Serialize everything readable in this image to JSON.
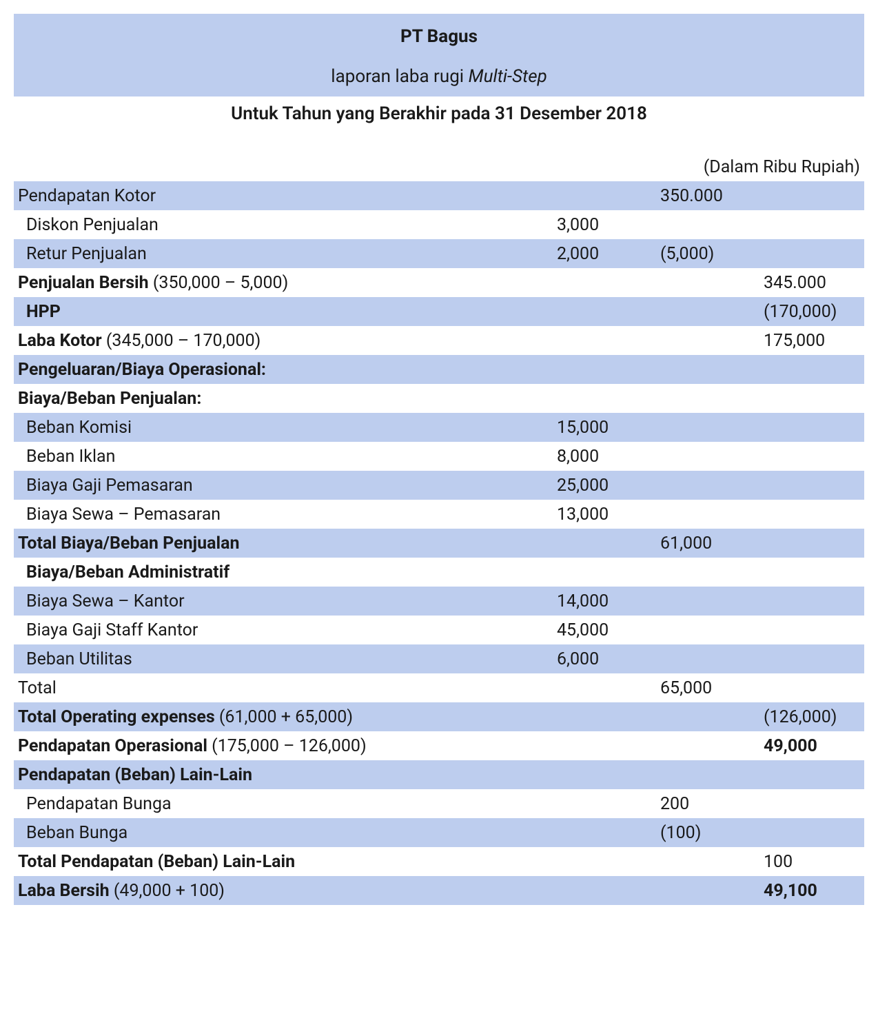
{
  "header": {
    "company": "PT Bagus",
    "report_type_prefix": "laporan laba rugi ",
    "report_type_italic": "Multi-Step",
    "period": "Untuk Tahun yang Berakhir pada 31 Desember 2018",
    "unit_note": "(Dalam Ribu Rupiah)"
  },
  "styling": {
    "row_blue": "#bdcdee",
    "row_white": "#ffffff",
    "text_color": "#1a1a1a",
    "font_size_body": 25,
    "font_size_header": 26
  },
  "rows": [
    {
      "bg": "blue",
      "label": "Pendapatan Kotor",
      "indent": 0,
      "bold": false,
      "c2": "",
      "c3": "350.000",
      "c4": ""
    },
    {
      "bg": "white",
      "label": "Diskon Penjualan",
      "indent": 1,
      "bold": false,
      "c2": "3,000",
      "c3": "",
      "c4": ""
    },
    {
      "bg": "blue",
      "label": "Retur Penjualan",
      "indent": 1,
      "bold": false,
      "c2": "2,000",
      "c3": "(5,000)",
      "c4": ""
    },
    {
      "bg": "white",
      "label_bold": "Penjualan Bersih",
      "label_rest": " (350,000 – 5,000)",
      "indent": 0,
      "c2": "",
      "c3": "",
      "c4": "345.000"
    },
    {
      "bg": "blue",
      "label_bold": "HPP",
      "label_rest": "",
      "indent": 1,
      "c2": "",
      "c3": "",
      "c4": "(170,000)"
    },
    {
      "bg": "white",
      "label_bold": "Laba Kotor",
      "label_rest": " (345,000 – 170,000)",
      "indent": 0,
      "c2": "",
      "c3": "",
      "c4": "175,000"
    },
    {
      "bg": "blue",
      "label_bold": "Pengeluaran/Biaya Operasional:",
      "label_rest": "",
      "indent": 0,
      "c2": "",
      "c3": "",
      "c4": ""
    },
    {
      "bg": "white",
      "label_bold": "Biaya/Beban Penjualan:",
      "label_rest": "",
      "indent": 0,
      "c2": "",
      "c3": "",
      "c4": ""
    },
    {
      "bg": "blue",
      "label": "Beban Komisi",
      "indent": 1,
      "bold": false,
      "c2": "15,000",
      "c3": "",
      "c4": ""
    },
    {
      "bg": "white",
      "label": "Beban Iklan",
      "indent": 1,
      "bold": false,
      "c2": "8,000",
      "c3": "",
      "c4": ""
    },
    {
      "bg": "blue",
      "label": "Biaya Gaji Pemasaran",
      "indent": 1,
      "bold": false,
      "c2": "25,000",
      "c3": "",
      "c4": ""
    },
    {
      "bg": "white",
      "label": "Biaya Sewa – Pemasaran",
      "indent": 1,
      "bold": false,
      "c2": "13,000",
      "c3": "",
      "c4": ""
    },
    {
      "bg": "blue",
      "label_bold": "Total Biaya/Beban Penjualan",
      "label_rest": "",
      "indent": 0,
      "c2": "",
      "c3": "61,000",
      "c4": ""
    },
    {
      "bg": "white",
      "label_bold": "Biaya/Beban Administratif",
      "label_rest": "",
      "indent": 1,
      "c2": "",
      "c3": "",
      "c4": ""
    },
    {
      "bg": "blue",
      "label": "Biaya Sewa – Kantor",
      "indent": 1,
      "bold": false,
      "c2": "14,000",
      "c3": "",
      "c4": ""
    },
    {
      "bg": "white",
      "label": "Biaya Gaji Staff Kantor",
      "indent": 1,
      "bold": false,
      "c2": "45,000",
      "c3": "",
      "c4": ""
    },
    {
      "bg": "blue",
      "label": "Beban Utilitas",
      "indent": 1,
      "bold": false,
      "c2": "6,000",
      "c3": "",
      "c4": ""
    },
    {
      "bg": "white",
      "label": "Total",
      "indent": 0,
      "bold": false,
      "c2": "",
      "c3": "65,000",
      "c4": ""
    },
    {
      "bg": "blue",
      "label_bold": "Total Operating expenses",
      "label_rest": " (61,000 + 65,000)",
      "indent": 0,
      "c2": "",
      "c3": "",
      "c4": "(126,000)"
    },
    {
      "bg": "white",
      "label_bold": "Pendapatan Operasional",
      "label_rest": " (175,000 – 126,000)",
      "indent": 0,
      "c2": "",
      "c3": "",
      "c4": "49,000",
      "c4_bold": true
    },
    {
      "bg": "blue",
      "label_bold": "Pendapatan (Beban) Lain-Lain",
      "label_rest": "",
      "indent": 0,
      "c2": "",
      "c3": "",
      "c4": ""
    },
    {
      "bg": "white",
      "label": "Pendapatan Bunga",
      "indent": 1,
      "bold": false,
      "c2": "",
      "c3": "200",
      "c4": ""
    },
    {
      "bg": "blue",
      "label": "Beban Bunga",
      "indent": 1,
      "bold": false,
      "c2": "",
      "c3": "(100)",
      "c4": ""
    },
    {
      "bg": "white",
      "label_bold": "Total Pendapatan (Beban) Lain-Lain",
      "label_rest": "",
      "indent": 0,
      "c2": "",
      "c3": "",
      "c4": "100"
    },
    {
      "bg": "blue",
      "label_bold": "Laba Bersih",
      "label_rest": " (49,000 + 100)",
      "indent": 0,
      "c2": "",
      "c3": "",
      "c4": "49,100",
      "c4_bold": true
    }
  ]
}
